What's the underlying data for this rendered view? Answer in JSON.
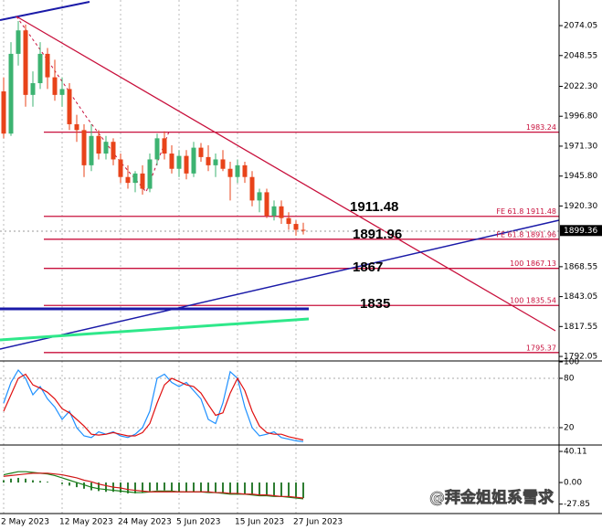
{
  "chart_data": [
    {
      "type": "candlestick",
      "categories": [
        "2 May 2023",
        null,
        null,
        null,
        null,
        null,
        null,
        null,
        "12 May 2023",
        null,
        null,
        null,
        null,
        null,
        null,
        null,
        "24 May 2023",
        null,
        null,
        null,
        null,
        null,
        null,
        null,
        "5 Jun 2023",
        null,
        null,
        null,
        null,
        null,
        null,
        null,
        "15 Jun 2023",
        null,
        null,
        null,
        null,
        null,
        null,
        null,
        "27 Jun 2023",
        null
      ],
      "open": [
        2018,
        1982,
        2050,
        2070,
        2015,
        2025,
        2050,
        2030,
        2015,
        2020,
        1990,
        1985,
        1955,
        1980,
        1965,
        1975,
        1960,
        1945,
        1940,
        1948,
        1935,
        1960,
        1978,
        1965,
        1952,
        1963,
        1948,
        1970,
        1962,
        1955,
        1960,
        1952,
        1945,
        1955,
        1945,
        1925,
        1932,
        1912,
        1920,
        1910,
        1905,
        1900
      ],
      "high": [
        2030,
        2060,
        2078,
        2075,
        2035,
        2060,
        2055,
        2045,
        2030,
        2025,
        1998,
        1990,
        1990,
        1985,
        1980,
        1978,
        1965,
        1955,
        1950,
        1955,
        1965,
        1982,
        1984,
        1972,
        1968,
        1968,
        1975,
        1974,
        1972,
        1965,
        1968,
        1958,
        1960,
        1958,
        1950,
        1935,
        1935,
        1925,
        1925,
        1915,
        1908,
        1906
      ],
      "low": [
        1978,
        1980,
        2040,
        2005,
        2005,
        2020,
        2020,
        2010,
        2005,
        1985,
        1975,
        1945,
        1950,
        1960,
        1960,
        1955,
        1940,
        1935,
        1932,
        1930,
        1932,
        1955,
        1960,
        1948,
        1945,
        1943,
        1945,
        1958,
        1950,
        1945,
        1950,
        1925,
        1940,
        1940,
        1920,
        1915,
        1910,
        1908,
        1905,
        1900,
        1895,
        1896
      ],
      "close": [
        1982,
        2050,
        2070,
        2015,
        2025,
        2050,
        2030,
        2015,
        2020,
        1990,
        1985,
        1955,
        1980,
        1965,
        1975,
        1960,
        1945,
        1940,
        1948,
        1935,
        1960,
        1978,
        1965,
        1952,
        1963,
        1948,
        1970,
        1962,
        1955,
        1960,
        1952,
        1945,
        1955,
        1945,
        1925,
        1932,
        1912,
        1920,
        1910,
        1905,
        1900,
        1899.36
      ],
      "bull_color": "#3cb371",
      "bear_color": "#e8431a",
      "ylim": [
        1788.2,
        2095.9
      ],
      "yticks": [
        2074.05,
        2048.55,
        {
          "value": 2022.3,
          "label": "2022.30"
        },
        {
          "value": 1996.8,
          "label": "1996.80"
        },
        {
          "value": 1971.3,
          "label": "1971.30"
        },
        {
          "value": 1945.8,
          "label": "1945.80"
        },
        {
          "value": 1920.3,
          "label": "1920.30"
        },
        1868.55,
        1843.05,
        1817.55,
        1792.05
      ],
      "last_price": 1899.36,
      "levels": [
        {
          "value": 1983.24,
          "label": "1983.24"
        },
        {
          "value": 1911.48,
          "label": "FE 61.8   1911.48"
        },
        {
          "value": 1891.96,
          "label": "FE 61.8   1891.96"
        },
        {
          "value": 1867.13,
          "label": "100   1867.13"
        },
        {
          "value": 1835.54,
          "label": "100   1835.54"
        },
        {
          "value": 1795.37,
          "label": "1795.37"
        }
      ],
      "level_color": "#c8103c",
      "annotations": [
        "1911.48",
        "1891.96",
        "1867",
        "1835"
      ],
      "grid": true
    },
    {
      "type": "line",
      "ylim": [
        0,
        100
      ],
      "yticks": [
        20,
        80,
        100
      ],
      "series": [
        {
          "color": "#1e90ff",
          "values": [
            50,
            75,
            90,
            80,
            60,
            70,
            55,
            45,
            30,
            40,
            20,
            10,
            8,
            15,
            12,
            15,
            10,
            8,
            12,
            20,
            40,
            80,
            85,
            75,
            70,
            75,
            65,
            55,
            30,
            25,
            50,
            88,
            80,
            45,
            20,
            10,
            12,
            15,
            8,
            6,
            4,
            3
          ]
        },
        {
          "color": "#e01010",
          "values": [
            40,
            60,
            80,
            85,
            72,
            68,
            63,
            55,
            43,
            38,
            30,
            22,
            12,
            11,
            12,
            14,
            12,
            10,
            10,
            14,
            25,
            50,
            72,
            80,
            76,
            72,
            70,
            62,
            48,
            35,
            38,
            62,
            80,
            65,
            40,
            22,
            14,
            12,
            12,
            9,
            7,
            5
          ]
        }
      ]
    },
    {
      "type": "macd",
      "ylim": [
        -40,
        46
      ],
      "yticks": [
        40.11,
        {
          "value": 0,
          "label": "0.00"
        },
        -27.85
      ],
      "values": [
        3,
        5,
        6,
        5,
        3,
        2,
        1,
        0,
        -2,
        -4,
        -6,
        -8,
        -10,
        -11,
        -12,
        -12,
        -13,
        -14,
        -14,
        -13,
        -11,
        -10,
        -10,
        -11,
        -12,
        -12,
        -12,
        -12,
        -13,
        -13,
        -14,
        -15,
        -15,
        -15,
        -16,
        -17,
        -17,
        -18,
        -18,
        -19,
        -20,
        -20
      ],
      "color": "#2e7d32",
      "series": [
        {
          "color": "#1a7f1a",
          "values": [
            10,
            12,
            14,
            14,
            13,
            12,
            11,
            9,
            6,
            3,
            0,
            -3,
            -6,
            -8,
            -9,
            -10,
            -11,
            -12,
            -13,
            -13,
            -12,
            -11,
            -11,
            -11,
            -12,
            -12,
            -12,
            -12,
            -13,
            -13,
            -14,
            -15,
            -15,
            -15,
            -16,
            -17,
            -17,
            -18,
            -18,
            -19,
            -20,
            -21
          ]
        },
        {
          "color": "#d01818",
          "values": [
            8,
            9,
            10,
            11,
            12,
            12,
            12,
            11,
            10,
            8,
            6,
            3,
            1,
            -2,
            -4,
            -6,
            -7,
            -9,
            -10,
            -11,
            -12,
            -12,
            -12,
            -12,
            -12,
            -12,
            -12,
            -12,
            -12,
            -13,
            -13,
            -14,
            -14,
            -15,
            -15,
            -16,
            -16,
            -17,
            -18,
            -18,
            -19,
            -20
          ]
        }
      ]
    }
  ],
  "watermark": "@拜金姐姐系雪求"
}
